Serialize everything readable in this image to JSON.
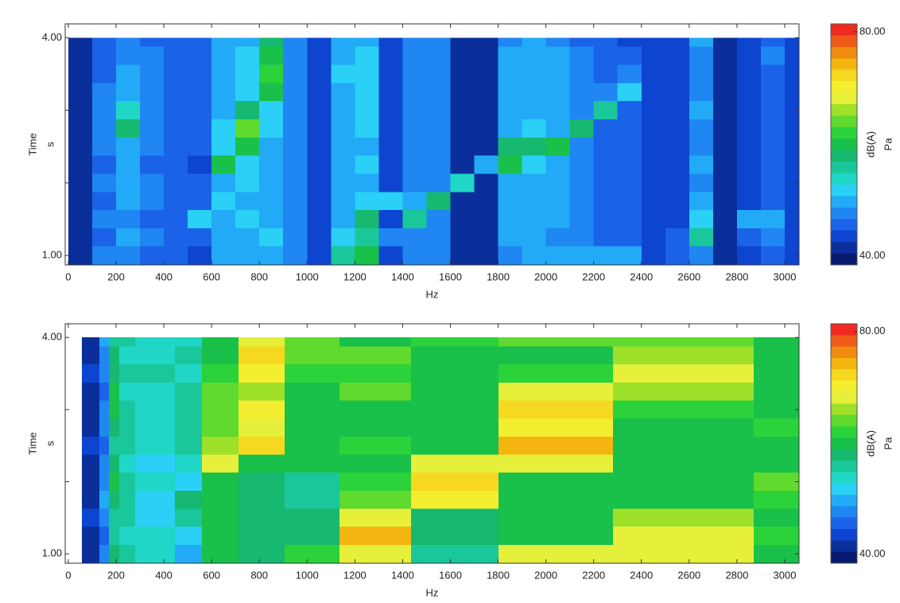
{
  "chart_data": [
    {
      "type": "heatmap",
      "x_label": "Hz",
      "y_label": "Time",
      "y_unit": "s",
      "xlim": [
        -13,
        3060
      ],
      "ylim": [
        0.87,
        4.19
      ],
      "xticks": [
        0,
        200,
        400,
        600,
        800,
        1000,
        1200,
        1400,
        1600,
        1800,
        2000,
        2200,
        2400,
        2600,
        2800,
        3000
      ],
      "yticks": [
        {
          "value": 1,
          "label": "1.00"
        },
        {
          "value": 4,
          "label": "4.00"
        }
      ],
      "yminorticks": [
        2,
        3
      ],
      "x_edges": [
        0,
        100,
        200,
        300,
        400,
        500,
        600,
        700,
        800,
        900,
        1000,
        1100,
        1200,
        1300,
        1400,
        1500,
        1600,
        1700,
        1800,
        1900,
        2000,
        2100,
        2200,
        2300,
        2400,
        2500,
        2600,
        2700,
        2800,
        2900,
        3000,
        3060
      ],
      "y_edges": [
        0.875,
        1.125,
        1.375,
        1.625,
        1.875,
        2.125,
        2.375,
        2.625,
        2.875,
        3.125,
        3.375,
        3.625,
        3.875,
        4.0
      ],
      "values": [
        [
          41,
          47,
          48,
          46,
          45,
          44,
          49,
          50,
          49,
          47,
          43,
          55,
          60,
          43,
          47,
          47,
          42,
          41,
          48,
          50,
          50,
          50,
          50,
          50,
          44,
          45,
          47,
          42,
          44,
          45,
          43
        ],
        [
          41,
          46,
          49,
          47,
          45,
          46,
          50,
          50,
          51,
          48,
          44,
          51,
          55,
          48,
          48,
          47,
          42,
          41,
          49,
          49,
          48,
          47,
          46,
          45,
          43,
          46,
          56,
          42,
          45,
          47,
          43
        ],
        [
          41,
          47,
          48,
          46,
          46,
          52,
          50,
          51,
          50,
          48,
          44,
          50,
          58,
          44,
          56,
          48,
          42,
          41,
          50,
          50,
          49,
          47,
          46,
          45,
          43,
          44,
          52,
          42,
          50,
          50,
          43
        ],
        [
          41,
          46,
          49,
          47,
          46,
          45,
          51,
          50,
          50,
          47,
          44,
          50,
          51,
          52,
          49,
          57,
          42,
          41,
          49,
          50,
          49,
          47,
          46,
          45,
          43,
          44,
          49,
          42,
          44,
          46,
          43
        ],
        [
          41,
          47,
          50,
          47,
          45,
          45,
          50,
          51,
          50,
          48,
          44,
          49,
          50,
          43,
          48,
          48,
          54,
          42,
          50,
          50,
          49,
          47,
          46,
          45,
          43,
          44,
          48,
          42,
          44,
          46,
          43
        ],
        [
          41,
          46,
          49,
          46,
          46,
          44,
          60,
          52,
          50,
          48,
          44,
          50,
          51,
          43,
          47,
          48,
          42,
          50,
          60,
          51,
          49,
          47,
          46,
          45,
          43,
          44,
          49,
          42,
          44,
          45,
          43
        ],
        [
          41,
          47,
          50,
          47,
          46,
          45,
          52,
          60,
          50,
          48,
          44,
          50,
          50,
          43,
          48,
          47,
          42,
          41,
          58,
          57,
          60,
          47,
          46,
          45,
          43,
          44,
          48,
          42,
          44,
          46,
          43
        ],
        [
          41,
          48,
          58,
          47,
          46,
          45,
          51,
          63,
          51,
          48,
          44,
          50,
          51,
          43,
          48,
          48,
          42,
          41,
          50,
          51,
          49,
          58,
          46,
          45,
          43,
          44,
          48,
          42,
          44,
          46,
          43
        ],
        [
          41,
          47,
          54,
          47,
          46,
          45,
          50,
          58,
          52,
          48,
          44,
          50,
          51,
          43,
          48,
          47,
          42,
          41,
          49,
          50,
          49,
          48,
          56,
          45,
          43,
          44,
          49,
          42,
          44,
          46,
          43
        ],
        [
          41,
          47,
          50,
          47,
          46,
          45,
          50,
          52,
          60,
          48,
          44,
          50,
          51,
          43,
          48,
          48,
          42,
          41,
          49,
          50,
          49,
          47,
          47,
          52,
          43,
          44,
          48,
          42,
          44,
          46,
          43
        ],
        [
          41,
          46,
          49,
          47,
          46,
          45,
          50,
          51,
          62,
          48,
          44,
          51,
          51,
          43,
          48,
          48,
          42,
          41,
          49,
          50,
          49,
          47,
          46,
          48,
          43,
          44,
          48,
          42,
          44,
          46,
          43
        ],
        [
          41,
          46,
          48,
          47,
          46,
          45,
          50,
          51,
          60,
          48,
          44,
          50,
          51,
          43,
          47,
          48,
          42,
          41,
          49,
          50,
          49,
          47,
          46,
          45,
          43,
          44,
          48,
          42,
          44,
          47,
          43
        ],
        [
          41,
          45,
          48,
          46,
          45,
          45,
          50,
          50,
          58,
          47,
          44,
          49,
          50,
          43,
          47,
          47,
          42,
          41,
          48,
          49,
          48,
          46,
          45,
          44,
          43,
          44,
          49,
          42,
          43,
          46,
          43
        ]
      ],
      "colorbar": {
        "label": "dB(A)",
        "unit": "Pa",
        "zlim": [
          38.4,
          81.4
        ],
        "ticks": [
          {
            "value": 40,
            "label": "40.00"
          },
          {
            "value": 80,
            "label": "80.00"
          }
        ],
        "colors": [
          "#081a70",
          "#0a2f9a",
          "#0d45d0",
          "#1a63e8",
          "#1f86f2",
          "#22aaf7",
          "#2ad0f5",
          "#20d6c6",
          "#1ac79a",
          "#17b870",
          "#19c04a",
          "#2bd23a",
          "#60da2e",
          "#9ee02a",
          "#e6f03a",
          "#f4ee30",
          "#f7d820",
          "#f5b510",
          "#f08a10",
          "#ee5a18",
          "#f02a20"
        ]
      }
    },
    {
      "type": "heatmap",
      "x_label": "Hz",
      "y_label": "Time",
      "y_unit": "s",
      "xlim": [
        -13,
        3060
      ],
      "ylim": [
        0.87,
        4.19
      ],
      "xticks": [
        0,
        200,
        400,
        600,
        800,
        1000,
        1200,
        1400,
        1600,
        1800,
        2000,
        2200,
        2400,
        2600,
        2800,
        3000
      ],
      "yticks": [
        {
          "value": 1,
          "label": "1.00"
        },
        {
          "value": 4,
          "label": "4.00"
        }
      ],
      "yminorticks": [
        2,
        3
      ],
      "x_edges": [
        57,
        130,
        170,
        213,
        280,
        446,
        559,
        713,
        906,
        1136,
        1435,
        1802,
        2281,
        2870,
        3060
      ],
      "y_edges": [
        0.875,
        1.125,
        1.375,
        1.625,
        1.875,
        2.125,
        2.375,
        2.625,
        2.875,
        3.125,
        3.375,
        3.625,
        3.875,
        4.0
      ],
      "values": [
        [
          42,
          47,
          57,
          55,
          54,
          50,
          60,
          58,
          61,
          69,
          56,
          69,
          68,
          60
        ],
        [
          41,
          46,
          56,
          54,
          53,
          52,
          59,
          57,
          57,
          74,
          57,
          60,
          68,
          61
        ],
        [
          43,
          48,
          55,
          55,
          52,
          56,
          60,
          58,
          57,
          68,
          58,
          60,
          67,
          60
        ],
        [
          42,
          49,
          58,
          56,
          52,
          58,
          59,
          58,
          56,
          64,
          70,
          59,
          60,
          62
        ],
        [
          41,
          47,
          59,
          55,
          53,
          51,
          60,
          57,
          56,
          61,
          72,
          60,
          59,
          64
        ],
        [
          42,
          48,
          57,
          54,
          52,
          54,
          68,
          60,
          59,
          60,
          68,
          69,
          59,
          60
        ],
        [
          43,
          46,
          56,
          55,
          53,
          55,
          67,
          72,
          60,
          61,
          60,
          74,
          60,
          59
        ],
        [
          42,
          47,
          58,
          56,
          54,
          56,
          64,
          69,
          60,
          60,
          59,
          71,
          60,
          61
        ],
        [
          41,
          48,
          60,
          55,
          53,
          55,
          65,
          70,
          60,
          60,
          59,
          73,
          61,
          60
        ],
        [
          42,
          46,
          59,
          54,
          54,
          56,
          63,
          66,
          60,
          65,
          60,
          68,
          67,
          60
        ],
        [
          43,
          47,
          58,
          55,
          55,
          54,
          61,
          71,
          61,
          61,
          60,
          61,
          68,
          59
        ],
        [
          42,
          48,
          57,
          54,
          54,
          55,
          60,
          72,
          65,
          63,
          60,
          60,
          66,
          60
        ],
        [
          41,
          49,
          56,
          55,
          54,
          54,
          60,
          69,
          64,
          60,
          61,
          64,
          65,
          60
        ]
      ],
      "colorbar": {
        "label": "dB(A)",
        "unit": "Pa",
        "zlim": [
          38.4,
          81.4
        ],
        "ticks": [
          {
            "value": 40,
            "label": "40.00"
          },
          {
            "value": 80,
            "label": "80.00"
          }
        ],
        "colors": [
          "#081a70",
          "#0a2f9a",
          "#0d45d0",
          "#1a63e8",
          "#1f86f2",
          "#22aaf7",
          "#2ad0f5",
          "#20d6c6",
          "#1ac79a",
          "#17b870",
          "#19c04a",
          "#2bd23a",
          "#60da2e",
          "#9ee02a",
          "#e6f03a",
          "#f4ee30",
          "#f7d820",
          "#f5b510",
          "#f08a10",
          "#ee5a18",
          "#f02a20"
        ]
      }
    }
  ]
}
